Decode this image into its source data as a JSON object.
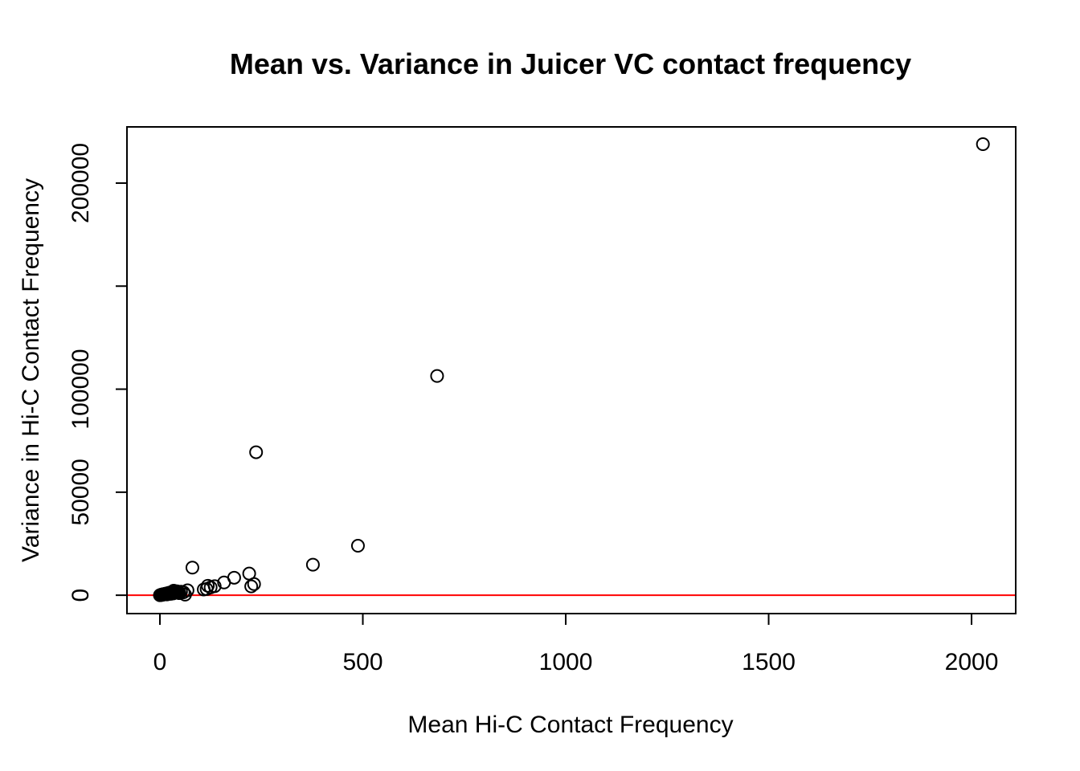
{
  "chart_data": {
    "type": "scatter",
    "title": "Mean vs. Variance in Juicer VC contact frequency",
    "xlabel": "Mean Hi-C Contact Frequency",
    "ylabel": "Variance in Hi-C Contact Frequency",
    "xlim": [
      -81.2,
      2108.8
    ],
    "ylim": [
      -8915,
      227275
    ],
    "x_ticks": [
      0,
      500,
      1000,
      1500,
      2000
    ],
    "x_tick_labels": [
      "0",
      "500",
      "1000",
      "1500",
      "2000"
    ],
    "y_ticks": [
      0,
      50000,
      100000,
      150000,
      200000
    ],
    "y_tick_labels": [
      "0",
      "50000",
      "100000",
      "",
      "200000"
    ],
    "grid": false,
    "reference_line": {
      "orientation": "horizontal",
      "y": 0,
      "color": "#ff0000"
    },
    "point_style": {
      "shape": "open-circle",
      "color": "#000000"
    },
    "points": [
      {
        "x": 0,
        "y": 0
      },
      {
        "x": 1,
        "y": 50
      },
      {
        "x": 2,
        "y": 120
      },
      {
        "x": 3,
        "y": 200
      },
      {
        "x": 4,
        "y": 300
      },
      {
        "x": 5,
        "y": 150
      },
      {
        "x": 6,
        "y": 350
      },
      {
        "x": 7,
        "y": 420
      },
      {
        "x": 8,
        "y": 280
      },
      {
        "x": 9,
        "y": 500
      },
      {
        "x": 10,
        "y": 380
      },
      {
        "x": 11,
        "y": 600
      },
      {
        "x": 12,
        "y": 450
      },
      {
        "x": 13,
        "y": 700
      },
      {
        "x": 14,
        "y": 520
      },
      {
        "x": 15,
        "y": 800
      },
      {
        "x": 16,
        "y": 650
      },
      {
        "x": 17,
        "y": 400
      },
      {
        "x": 18,
        "y": 900
      },
      {
        "x": 19,
        "y": 750
      },
      {
        "x": 20,
        "y": 1000
      },
      {
        "x": 21,
        "y": 600
      },
      {
        "x": 22,
        "y": 1100
      },
      {
        "x": 23,
        "y": 850
      },
      {
        "x": 24,
        "y": 1200
      },
      {
        "x": 25,
        "y": 950
      },
      {
        "x": 26,
        "y": 1300
      },
      {
        "x": 27,
        "y": 700
      },
      {
        "x": 28,
        "y": 1400
      },
      {
        "x": 29,
        "y": 1050
      },
      {
        "x": 30,
        "y": 1500
      },
      {
        "x": 31,
        "y": 1200
      },
      {
        "x": 32,
        "y": 1700
      },
      {
        "x": 33,
        "y": 900
      },
      {
        "x": 34,
        "y": 2200
      },
      {
        "x": 35,
        "y": 1600
      },
      {
        "x": 36,
        "y": 1300
      },
      {
        "x": 38,
        "y": 1800
      },
      {
        "x": 40,
        "y": 1500
      },
      {
        "x": 42,
        "y": 1900
      },
      {
        "x": 44,
        "y": 1200
      },
      {
        "x": 46,
        "y": 1600
      },
      {
        "x": 48,
        "y": 1000
      },
      {
        "x": 52,
        "y": 1700
      },
      {
        "x": 58,
        "y": 1400
      },
      {
        "x": 62,
        "y": 300
      },
      {
        "x": 68,
        "y": 2400
      },
      {
        "x": 80,
        "y": 13400
      },
      {
        "x": 108,
        "y": 2800
      },
      {
        "x": 115,
        "y": 3000
      },
      {
        "x": 118,
        "y": 4600
      },
      {
        "x": 125,
        "y": 3800
      },
      {
        "x": 135,
        "y": 4400
      },
      {
        "x": 158,
        "y": 6200
      },
      {
        "x": 183,
        "y": 8500
      },
      {
        "x": 220,
        "y": 10500
      },
      {
        "x": 225,
        "y": 4300
      },
      {
        "x": 232,
        "y": 5400
      },
      {
        "x": 237,
        "y": 69400
      },
      {
        "x": 377,
        "y": 14800
      },
      {
        "x": 488,
        "y": 24000
      },
      {
        "x": 683,
        "y": 106400
      },
      {
        "x": 2028,
        "y": 218900
      }
    ]
  }
}
